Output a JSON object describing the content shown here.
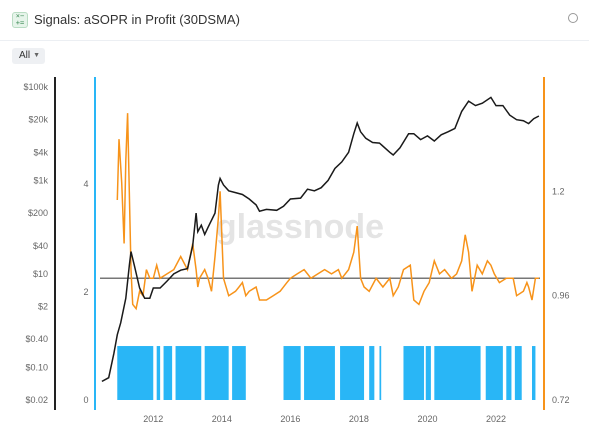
{
  "header": {
    "title": "Signals: aSOPR in Profit (30DSMA)",
    "icon": "calculator-icon",
    "settings_icon": "gear-icon"
  },
  "controls": {
    "range_label": "All",
    "range_icon": "chevron-down-icon"
  },
  "watermark": "glassnode",
  "colors": {
    "price": "#1a1a1a",
    "asopr": "#f7931a",
    "signal": "#29b6f6",
    "threshold": "#777777"
  },
  "chart_data": {
    "type": "line",
    "x_ticks": [
      "2012",
      "2014",
      "2016",
      "2018",
      "2020",
      "2022"
    ],
    "price_axis": {
      "scale": "log",
      "ticks": [
        "$100k",
        "$20k",
        "$4k",
        "$1k",
        "$200",
        "$40",
        "$10",
        "$2",
        "$0.40",
        "$0.10",
        "$0.02"
      ],
      "range": [
        0.02,
        100000
      ]
    },
    "signal_axis": {
      "ticks": [
        "4",
        "2",
        "0"
      ],
      "range": [
        0,
        5.8
      ]
    },
    "asopr_axis": {
      "ticks": [
        "1.2",
        "0.96",
        "0.72"
      ],
      "range": [
        0.72,
        1.44
      ]
    },
    "threshold": 1.0,
    "series": [
      {
        "kind": "price",
        "x": [
          2010.5,
          2010.7,
          2010.85,
          2010.95,
          2011.05,
          2011.2,
          2011.3,
          2011.35,
          2011.45,
          2011.6,
          2011.75,
          2011.9,
          2012.0,
          2012.2,
          2012.4,
          2012.6,
          2012.8,
          2013.0,
          2013.15,
          2013.25,
          2013.3,
          2013.4,
          2013.5,
          2013.6,
          2013.8,
          2013.9,
          2013.95,
          2014.05,
          2014.2,
          2014.4,
          2014.6,
          2014.8,
          2015.0,
          2015.1,
          2015.3,
          2015.6,
          2015.8,
          2016.0,
          2016.3,
          2016.5,
          2016.7,
          2016.9,
          2017.1,
          2017.3,
          2017.5,
          2017.7,
          2017.85,
          2017.95,
          2018.05,
          2018.2,
          2018.4,
          2018.6,
          2018.9,
          2019.0,
          2019.2,
          2019.45,
          2019.6,
          2019.8,
          2020.0,
          2020.2,
          2020.4,
          2020.6,
          2020.8,
          2021.0,
          2021.2,
          2021.4,
          2021.6,
          2021.85,
          2022.0,
          2022.2,
          2022.4,
          2022.6,
          2022.8,
          2022.95,
          2023.1,
          2023.25
        ],
        "y": [
          0.05,
          0.06,
          0.2,
          0.5,
          0.9,
          3,
          15,
          30,
          15,
          5,
          3,
          3,
          5,
          5,
          7,
          10,
          12,
          13,
          40,
          200,
          80,
          110,
          70,
          100,
          200,
          800,
          1100,
          800,
          600,
          550,
          500,
          400,
          300,
          220,
          240,
          230,
          280,
          400,
          420,
          650,
          600,
          700,
          1000,
          1800,
          2500,
          4000,
          10000,
          17000,
          11000,
          8000,
          6500,
          6300,
          4000,
          3500,
          5000,
          10000,
          10000,
          7500,
          9000,
          7000,
          9500,
          11000,
          13000,
          30000,
          50000,
          40000,
          45000,
          60000,
          40000,
          40000,
          25000,
          20000,
          19000,
          16500,
          21000,
          24000
        ]
      },
      {
        "kind": "asopr",
        "x": [
          2010.95,
          2011.0,
          2011.08,
          2011.15,
          2011.2,
          2011.25,
          2011.3,
          2011.35,
          2011.4,
          2011.5,
          2011.6,
          2011.7,
          2011.8,
          2011.9,
          2012.0,
          2012.1,
          2012.2,
          2012.4,
          2012.6,
          2012.8,
          2013.0,
          2013.15,
          2013.25,
          2013.3,
          2013.35,
          2013.5,
          2013.6,
          2013.7,
          2013.8,
          2013.9,
          2013.95,
          2014.05,
          2014.2,
          2014.4,
          2014.5,
          2014.6,
          2014.7,
          2014.8,
          2015.0,
          2015.1,
          2015.3,
          2015.5,
          2015.7,
          2015.9,
          2016.0,
          2016.2,
          2016.4,
          2016.5,
          2016.6,
          2016.8,
          2017.0,
          2017.2,
          2017.4,
          2017.5,
          2017.7,
          2017.85,
          2017.95,
          2018.05,
          2018.15,
          2018.3,
          2018.5,
          2018.7,
          2018.9,
          2019.0,
          2019.15,
          2019.3,
          2019.5,
          2019.6,
          2019.75,
          2019.9,
          2020.05,
          2020.2,
          2020.35,
          2020.5,
          2020.7,
          2020.85,
          2021.0,
          2021.1,
          2021.2,
          2021.3,
          2021.45,
          2021.6,
          2021.75,
          2021.85,
          2021.95,
          2022.1,
          2022.3,
          2022.5,
          2022.6,
          2022.8,
          2022.9,
          2022.95,
          2023.05,
          2023.15,
          2023.25
        ],
        "y": [
          1.18,
          1.32,
          1.22,
          1.08,
          1.27,
          1.38,
          1.2,
          1.02,
          0.94,
          0.93,
          0.97,
          0.96,
          1.02,
          1.0,
          1.0,
          1.03,
          1.0,
          1.01,
          1.02,
          1.05,
          1.02,
          1.08,
          1.02,
          0.98,
          1.0,
          1.02,
          1.0,
          0.97,
          1.05,
          1.14,
          1.2,
          1.0,
          0.96,
          0.97,
          0.98,
          0.99,
          0.96,
          0.97,
          0.98,
          0.95,
          0.95,
          0.96,
          0.97,
          0.99,
          1.0,
          1.01,
          1.02,
          1.01,
          1.0,
          1.01,
          1.02,
          1.01,
          1.02,
          1.0,
          1.02,
          1.06,
          1.12,
          1.0,
          0.98,
          0.97,
          1.0,
          0.98,
          1.0,
          0.96,
          0.98,
          1.02,
          1.03,
          0.95,
          0.94,
          0.97,
          0.99,
          1.04,
          1.01,
          1.02,
          1.0,
          1.01,
          1.04,
          1.1,
          1.06,
          0.97,
          1.03,
          1.01,
          1.04,
          1.03,
          1.01,
          0.99,
          1.0,
          1.0,
          0.96,
          0.97,
          0.99,
          0.98,
          0.95,
          1.0,
          1.0
        ]
      },
      {
        "kind": "signal",
        "value": 1,
        "ranges": [
          [
            2010.95,
            2012.0
          ],
          [
            2012.1,
            2012.2
          ],
          [
            2012.3,
            2012.55
          ],
          [
            2012.65,
            2013.4
          ],
          [
            2013.5,
            2014.2
          ],
          [
            2014.3,
            2014.7
          ],
          [
            2015.8,
            2016.3
          ],
          [
            2016.4,
            2017.3
          ],
          [
            2017.45,
            2018.15
          ],
          [
            2018.3,
            2018.45
          ],
          [
            2018.6,
            2018.65
          ],
          [
            2019.3,
            2019.9
          ],
          [
            2019.95,
            2020.1
          ],
          [
            2020.2,
            2021.55
          ],
          [
            2021.7,
            2022.2
          ],
          [
            2022.3,
            2022.45
          ],
          [
            2022.55,
            2022.75
          ],
          [
            2023.05,
            2023.15
          ]
        ]
      }
    ],
    "legend": "none",
    "grid": false
  }
}
